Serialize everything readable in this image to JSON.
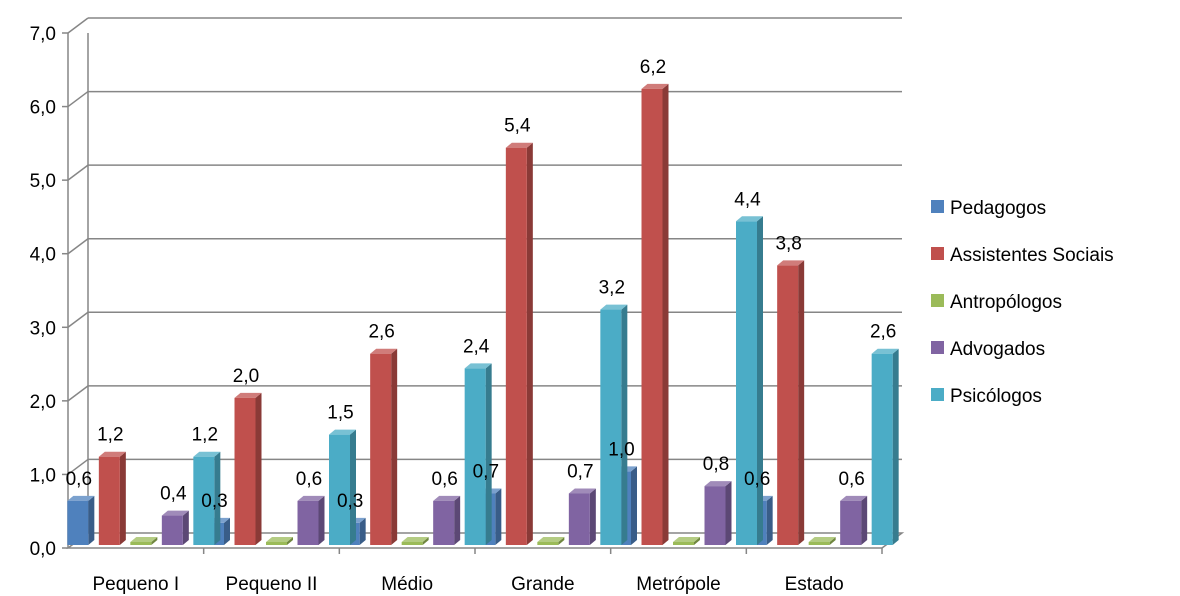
{
  "chart_data": {
    "type": "bar",
    "title": "",
    "xlabel": "",
    "ylabel": "",
    "ylim": [
      0,
      7
    ],
    "yticks": [
      "0,0",
      "1,0",
      "2,0",
      "3,0",
      "4,0",
      "5,0",
      "6,0",
      "7,0"
    ],
    "grid": true,
    "legend_position": "right",
    "categories": [
      "Pequeno I",
      "Pequeno II",
      "Médio",
      "Grande",
      "Metrópole",
      "Estado"
    ],
    "series": [
      {
        "name": "Pedagogos",
        "color": "#4F81BD",
        "values": [
          0.6,
          0.3,
          0.3,
          0.7,
          1.0,
          0.6
        ],
        "labels": [
          "0,6",
          "0,3",
          "0,3",
          "0,7",
          "1,0",
          "0,6"
        ]
      },
      {
        "name": "Assistentes Sociais",
        "color": "#C0504D",
        "values": [
          1.2,
          2.0,
          2.6,
          5.4,
          6.2,
          3.8
        ],
        "labels": [
          "1,2",
          "2,0",
          "2,6",
          "5,4",
          "6,2",
          "3,8"
        ]
      },
      {
        "name": "Antropólogos",
        "color": "#9BBB59",
        "values": [
          0,
          0,
          0,
          0,
          0,
          0
        ],
        "labels": [
          "",
          "",
          "",
          "",
          "",
          ""
        ]
      },
      {
        "name": "Advogados",
        "color": "#8064A2",
        "values": [
          0.4,
          0.6,
          0.6,
          0.7,
          0.8,
          0.6
        ],
        "labels": [
          "0,4",
          "0,6",
          "0,6",
          "0,7",
          "0,8",
          "0,6"
        ]
      },
      {
        "name": "Psicólogos",
        "color": "#4BACC6",
        "values": [
          1.2,
          1.5,
          2.4,
          3.2,
          4.4,
          2.6
        ],
        "labels": [
          "1,2",
          "1,5",
          "2,4",
          "3,2",
          "4,4",
          "2,6"
        ]
      }
    ]
  }
}
